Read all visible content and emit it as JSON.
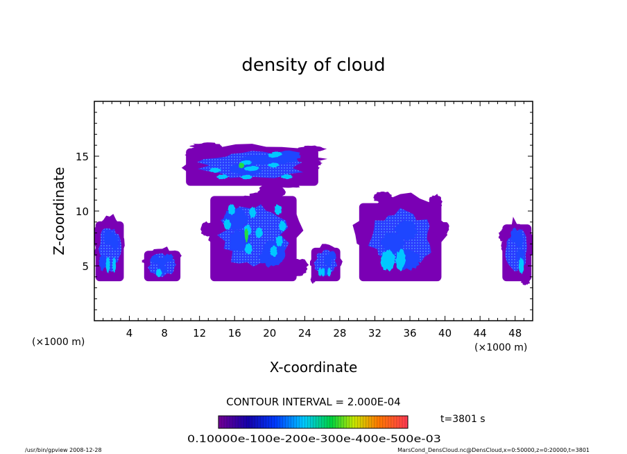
{
  "chart_data": {
    "type": "heatmap",
    "title": "density of cloud",
    "xlabel": "X-coordinate",
    "ylabel": "Z-coordinate",
    "x_unit_left": "(×1000 m)",
    "x_unit_right": "(×1000 m)",
    "xlim": [
      0,
      50
    ],
    "ylim": [
      0,
      20
    ],
    "x_ticks": [
      4,
      8,
      12,
      16,
      20,
      24,
      28,
      32,
      36,
      40,
      44,
      48
    ],
    "y_ticks": [
      5,
      10,
      15
    ],
    "contour_interval": "CONTOUR INTERVAL = 2.000E-04",
    "time_label": "t=3801 s",
    "colorbar_labels": [
      "0.1000e-10",
      "0.1000e-3",
      "0.2000e-3",
      "0.3000e-3",
      "0.4000e-3",
      "0.5000e-3"
    ],
    "colorbar_labels_text": "0.10000e-100e-200e-300e-400e-500e-03",
    "footer_left": "/usr/bin/gpview  2008-12-28",
    "footer_right": "MarsCond_DensCloud.nc@DensCloud,x=0:50000,z=0:20000,t=3801",
    "colors": {
      "low": "#7a00b4",
      "mid": "#1e46ff",
      "high": "#00c8ff",
      "peak": "#22dd44"
    },
    "cloud_regions": [
      {
        "x": [
          9.8,
          26.2
        ],
        "z": [
          12.3,
          16.0
        ],
        "level": "mixed"
      },
      {
        "x": [
          12.8,
          23.5
        ],
        "z": [
          3.6,
          12.0
        ],
        "level": "mixed"
      },
      {
        "x": [
          5.5,
          10.0
        ],
        "z": [
          3.6,
          6.6
        ],
        "level": "low-mid"
      },
      {
        "x": [
          24.6,
          28.2
        ],
        "z": [
          3.6,
          6.9
        ],
        "level": "low-mid"
      },
      {
        "x": [
          29.8,
          40.0
        ],
        "z": [
          3.6,
          11.3
        ],
        "level": "low-mid"
      },
      {
        "x": [
          0.0,
          3.5
        ],
        "z": [
          3.6,
          9.5
        ],
        "level": "low-mid"
      },
      {
        "x": [
          46.4,
          50.0
        ],
        "z": [
          3.6,
          9.2
        ],
        "level": "low-mid"
      }
    ]
  }
}
